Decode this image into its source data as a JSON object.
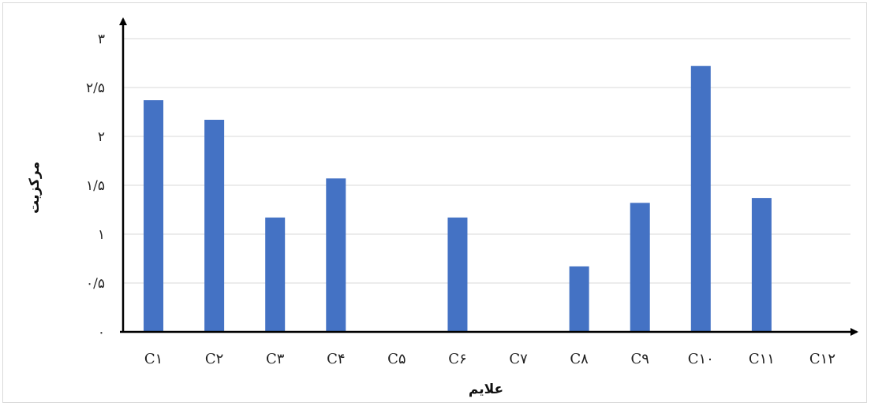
{
  "chart_data": {
    "type": "bar",
    "xlabel": "علایم",
    "ylabel": "مرکزیت",
    "ylim": [
      0,
      3
    ],
    "grid": true,
    "yticks": [
      {
        "value": 0,
        "label": "۰"
      },
      {
        "value": 0.5,
        "label": "۰/۵"
      },
      {
        "value": 1,
        "label": "۱"
      },
      {
        "value": 1.5,
        "label": "۱/۵"
      },
      {
        "value": 2,
        "label": "۲"
      },
      {
        "value": 2.5,
        "label": "۲/۵"
      },
      {
        "value": 3,
        "label": "۳"
      }
    ],
    "categories": [
      "C۱",
      "C۲",
      "C۳",
      "C۴",
      "C۵",
      "C۶",
      "C۷",
      "C۸",
      "C۹",
      "C۱۰",
      "C۱۱",
      "C۱۲"
    ],
    "values": [
      2.37,
      2.17,
      1.17,
      1.57,
      0,
      1.17,
      0,
      0.67,
      1.32,
      2.72,
      1.37,
      0
    ],
    "colors": {
      "bar": "#4472c4",
      "axis": "#000000",
      "grid": "#d9d9d9"
    }
  }
}
